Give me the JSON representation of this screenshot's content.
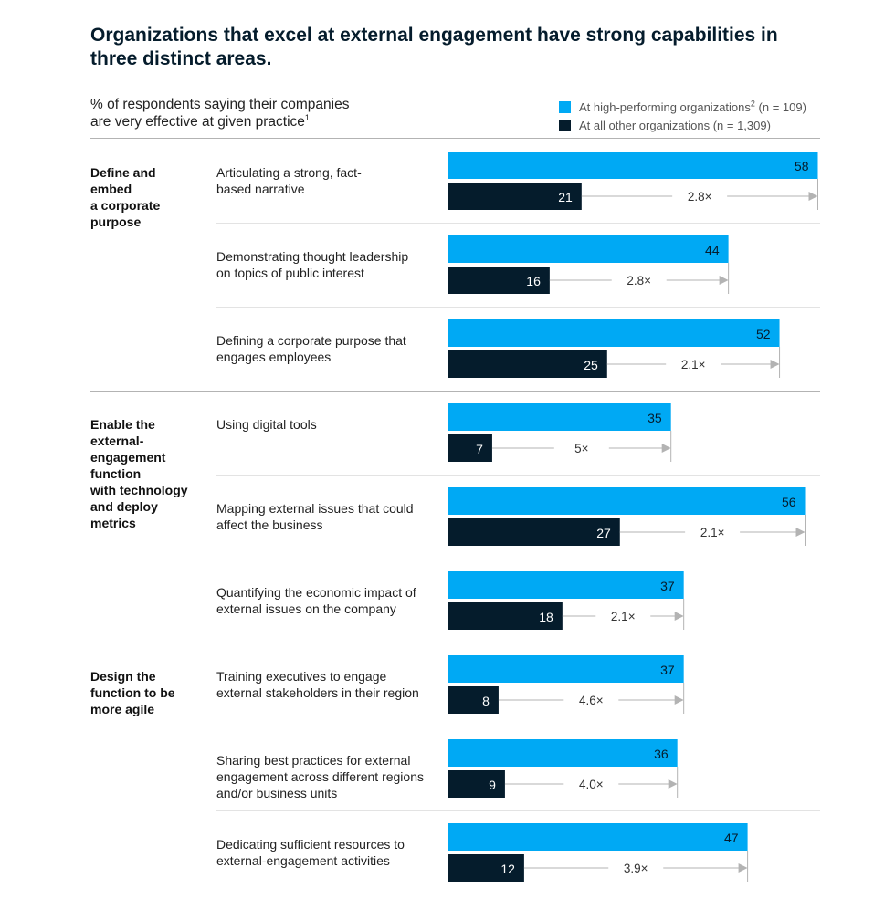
{
  "title": "Organizations that excel at external engagement have strong capabilities in three distinct areas.",
  "subtitle": {
    "line1": "% of respondents saying their companies",
    "line2": "are very effective at given practice",
    "footnote": "1"
  },
  "legend": [
    {
      "label": "At high-performing organizations",
      "footnote": "2",
      "n": " (n = 109)",
      "color": "#00a9f4"
    },
    {
      "label": "At all other organizations (n = 1,309)",
      "footnote": "",
      "n": "",
      "color": "#051c2c"
    }
  ],
  "chart_data": {
    "type": "bar",
    "orientation": "horizontal",
    "unit": "%",
    "xlim": [
      0,
      58
    ],
    "colors": {
      "high": "#00a9f4",
      "other": "#051c2c",
      "rule": "#b3b3b3"
    },
    "series": [
      {
        "name": "At high-performing organizations (n = 109)",
        "key": "high"
      },
      {
        "name": "At all other organizations (n = 1,309)",
        "key": "other"
      }
    ],
    "groups": [
      {
        "title": [
          "Define and",
          "embed",
          "a corporate",
          "purpose"
        ],
        "rows": [
          {
            "label": [
              "Articulating a strong, fact-",
              "based narrative"
            ],
            "high": 58,
            "other": 21,
            "ratio": "2.8×"
          },
          {
            "label": [
              "Demonstrating thought leadership",
              "on topics of public interest"
            ],
            "high": 44,
            "other": 16,
            "ratio": "2.8×"
          },
          {
            "label": [
              "Defining a corporate purpose that",
              "engages employees"
            ],
            "high": 52,
            "other": 25,
            "ratio": "2.1×"
          }
        ]
      },
      {
        "title": [
          "Enable the",
          "external-",
          "engagement",
          "function",
          "with technology",
          "and deploy",
          "metrics"
        ],
        "rows": [
          {
            "label": [
              "Using digital tools"
            ],
            "high": 35,
            "other": 7,
            "ratio": "5×"
          },
          {
            "label": [
              "Mapping external issues that could",
              "affect the business"
            ],
            "high": 56,
            "other": 27,
            "ratio": "2.1×"
          },
          {
            "label": [
              "Quantifying the economic impact of",
              "external issues on the company"
            ],
            "high": 37,
            "other": 18,
            "ratio": "2.1×"
          }
        ]
      },
      {
        "title": [
          "Design the",
          "function to be",
          "more agile"
        ],
        "rows": [
          {
            "label": [
              "Training executives to engage",
              "external stakeholders in their region"
            ],
            "high": 37,
            "other": 8,
            "ratio": "4.6×"
          },
          {
            "label": [
              "Sharing best practices for external",
              "engagement across different regions",
              "and/or business units"
            ],
            "high": 36,
            "other": 9,
            "ratio": "4.0×"
          },
          {
            "label": [
              "Dedicating sufficient resources to",
              "external-engagement activities"
            ],
            "high": 47,
            "other": 12,
            "ratio": "3.9×"
          }
        ]
      }
    ]
  }
}
